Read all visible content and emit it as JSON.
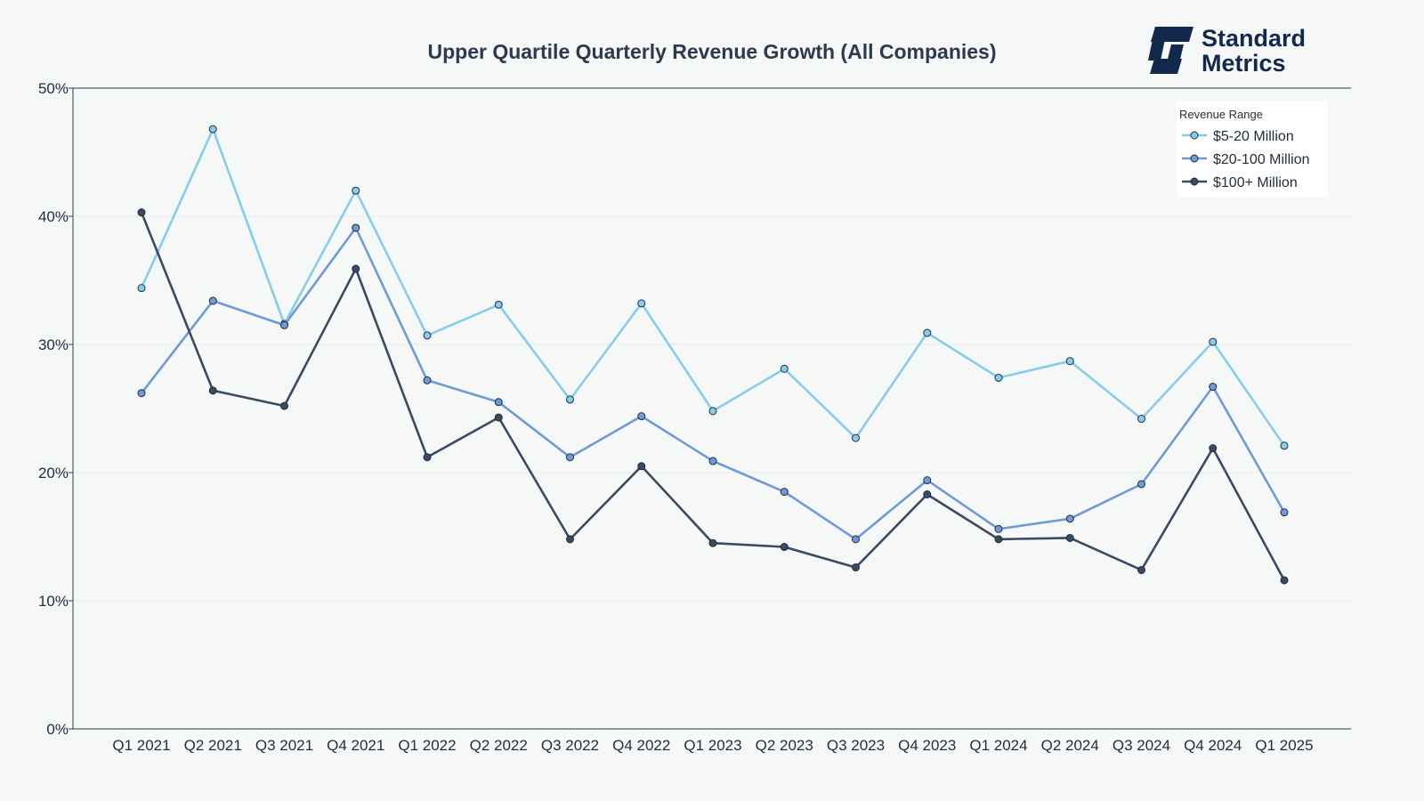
{
  "brand": {
    "line1": "Standard",
    "line2": "Metrics",
    "color": "#13294b"
  },
  "chart_data": {
    "type": "line",
    "title": "Upper Quartile Quarterly Revenue Growth (All Companies)",
    "xlabel": "",
    "ylabel": "",
    "categories": [
      "Q1 2021",
      "Q2 2021",
      "Q3 2021",
      "Q4 2021",
      "Q1 2022",
      "Q2 2022",
      "Q3 2022",
      "Q4 2022",
      "Q1 2023",
      "Q2 2023",
      "Q3 2023",
      "Q4 2023",
      "Q1 2024",
      "Q2 2024",
      "Q3 2024",
      "Q4 2024",
      "Q1 2025"
    ],
    "ylim": [
      0,
      50
    ],
    "yticks": [
      0,
      10,
      20,
      30,
      40,
      50
    ],
    "ytick_labels": [
      "0%",
      "10%",
      "20%",
      "30%",
      "40%",
      "50%"
    ],
    "grid": true,
    "legend": {
      "title": "Revenue Range",
      "position": "top-right"
    },
    "series": [
      {
        "name": "$5-20 Million",
        "color": "#87cde9",
        "values": [
          34.4,
          46.8,
          31.6,
          42.0,
          30.7,
          33.1,
          25.7,
          33.2,
          24.8,
          28.1,
          22.7,
          30.9,
          27.4,
          28.7,
          24.2,
          30.2,
          22.1
        ]
      },
      {
        "name": "$20-100 Million",
        "color": "#6e9ad6",
        "values": [
          26.2,
          33.4,
          31.5,
          39.1,
          27.2,
          25.5,
          21.2,
          24.4,
          20.9,
          18.5,
          14.8,
          19.4,
          15.6,
          16.4,
          19.1,
          26.7,
          16.9
        ]
      },
      {
        "name": "$100+ Million",
        "color": "#3a4a63",
        "values": [
          40.3,
          26.4,
          25.2,
          35.9,
          21.2,
          24.3,
          14.8,
          20.5,
          14.5,
          14.2,
          12.6,
          18.3,
          14.8,
          14.9,
          12.4,
          21.9,
          11.6
        ]
      }
    ]
  }
}
